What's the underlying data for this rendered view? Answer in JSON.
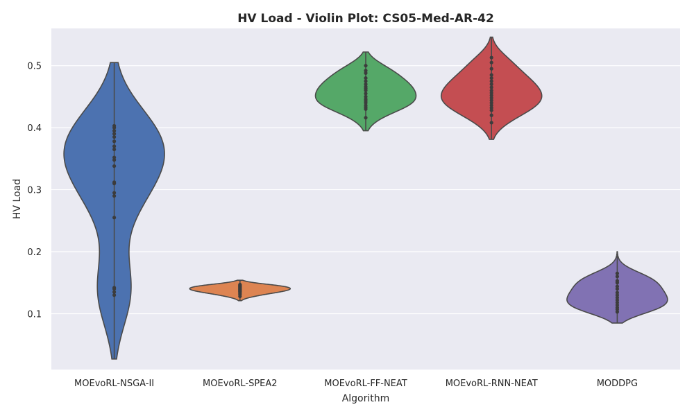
{
  "chart_data": {
    "type": "violin",
    "title": "HV Load - Violin Plot: CS05-Med-AR-42",
    "xlabel": "Algorithm",
    "ylabel": "HV Load",
    "ylim": [
      0.01,
      0.56
    ],
    "yticks": [
      0.1,
      0.2,
      0.3,
      0.4,
      0.5
    ],
    "ytick_labels": [
      "0.1",
      "0.2",
      "0.3",
      "0.4",
      "0.5"
    ],
    "grid": true,
    "background": "#EAEAF2",
    "grid_color": "#FFFFFF",
    "outline_color": "#4A4A4A",
    "series": [
      {
        "category": "MOEvoRL-NSGA-II",
        "color": "#4C72B0",
        "min": 0.027,
        "max": 0.505,
        "points": [
          0.13,
          0.135,
          0.14,
          0.142,
          0.255,
          0.29,
          0.295,
          0.31,
          0.312,
          0.338,
          0.348,
          0.352,
          0.365,
          0.37,
          0.378,
          0.385,
          0.39,
          0.395,
          0.4,
          0.403
        ]
      },
      {
        "category": "MOEvoRL-SPEA2",
        "color": "#DD8452",
        "min": 0.121,
        "max": 0.154,
        "points": [
          0.128,
          0.131,
          0.133,
          0.135,
          0.136,
          0.137,
          0.138,
          0.139,
          0.14,
          0.141,
          0.142,
          0.143,
          0.144,
          0.145,
          0.146,
          0.147
        ]
      },
      {
        "category": "MOEvoRL-FF-NEAT",
        "color": "#55A868",
        "min": 0.395,
        "max": 0.522,
        "points": [
          0.416,
          0.43,
          0.433,
          0.436,
          0.44,
          0.443,
          0.446,
          0.45,
          0.455,
          0.46,
          0.463,
          0.466,
          0.47,
          0.475,
          0.48,
          0.488,
          0.492,
          0.5
        ]
      },
      {
        "category": "MOEvoRL-RNN-NEAT",
        "color": "#C44E52",
        "min": 0.381,
        "max": 0.546,
        "points": [
          0.408,
          0.42,
          0.428,
          0.432,
          0.436,
          0.44,
          0.444,
          0.448,
          0.452,
          0.456,
          0.46,
          0.465,
          0.47,
          0.475,
          0.48,
          0.485,
          0.495,
          0.505,
          0.513
        ]
      },
      {
        "category": "MODDPG",
        "color": "#8172B3",
        "min": 0.085,
        "max": 0.2,
        "points": [
          0.103,
          0.107,
          0.11,
          0.114,
          0.118,
          0.122,
          0.126,
          0.13,
          0.134,
          0.14,
          0.144,
          0.15,
          0.153,
          0.16,
          0.165
        ]
      }
    ]
  }
}
